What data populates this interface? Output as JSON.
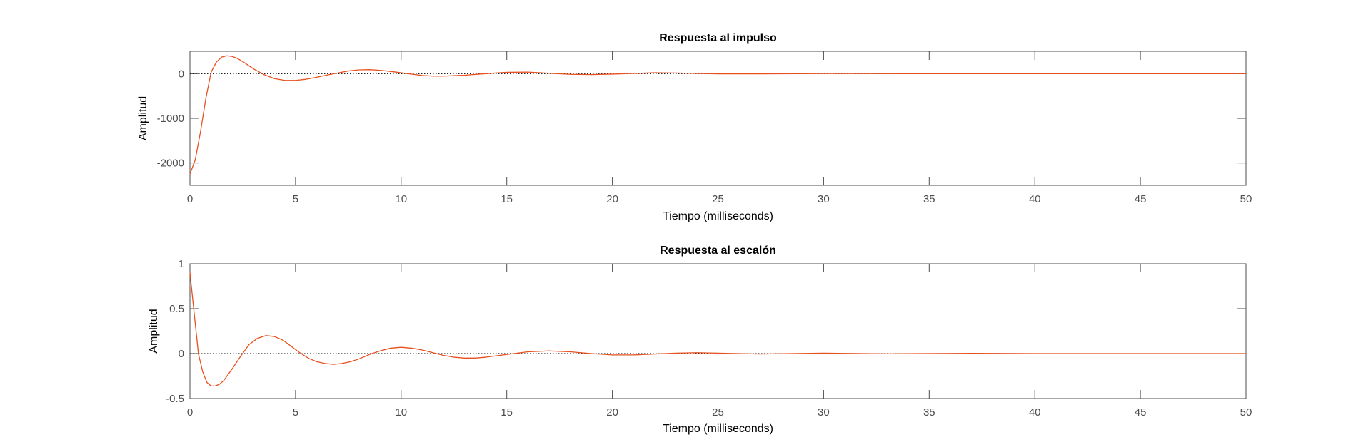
{
  "colors": {
    "series": "#e8501f",
    "axes": "#4d4d4d",
    "reference_line": "#000000"
  },
  "chart_data": [
    {
      "type": "line",
      "title": "Respuesta al impulso",
      "xlabel": "Tiempo (milliseconds)",
      "ylabel": "Amplitud",
      "xlim": [
        0,
        50
      ],
      "ylim": [
        -2500,
        500
      ],
      "xticks": [
        0,
        5,
        10,
        15,
        20,
        25,
        30,
        35,
        40,
        45,
        50
      ],
      "yticks": [
        -2000,
        -1000,
        0
      ],
      "xtick_labels": [
        "0",
        "5",
        "10",
        "15",
        "20",
        "25",
        "30",
        "35",
        "40",
        "45",
        "50"
      ],
      "ytick_labels": [
        "-2000",
        "-1000",
        "0"
      ],
      "grid": false,
      "reference_line_y": 0,
      "series": [
        {
          "color": "#e8501f",
          "x": [
            0,
            0.25,
            0.5,
            0.75,
            1,
            1.25,
            1.5,
            1.75,
            2,
            2.25,
            2.5,
            2.75,
            3,
            3.5,
            4,
            4.5,
            5,
            5.5,
            6,
            6.5,
            7,
            7.5,
            8,
            8.5,
            9,
            9.5,
            10,
            10.5,
            11,
            11.5,
            12,
            13,
            14,
            15,
            16,
            17,
            18,
            19,
            20,
            21,
            22,
            23,
            24,
            25,
            27,
            30,
            35,
            40,
            45,
            50
          ],
          "y": [
            -2250,
            -1930,
            -1300,
            -560,
            30,
            260,
            370,
            400,
            385,
            340,
            270,
            190,
            110,
            -20,
            -110,
            -150,
            -150,
            -125,
            -80,
            -30,
            15,
            60,
            85,
            90,
            75,
            50,
            20,
            -10,
            -40,
            -55,
            -55,
            -35,
            0,
            30,
            35,
            10,
            -15,
            -20,
            -10,
            5,
            20,
            15,
            5,
            -5,
            -5,
            3,
            0,
            0,
            0,
            0
          ]
        }
      ]
    },
    {
      "type": "line",
      "title": "Respuesta al escalón",
      "xlabel": "Tiempo (milliseconds)",
      "ylabel": "Amplitud",
      "xlim": [
        0,
        50
      ],
      "ylim": [
        -0.5,
        1
      ],
      "xticks": [
        0,
        5,
        10,
        15,
        20,
        25,
        30,
        35,
        40,
        45,
        50
      ],
      "yticks": [
        -0.5,
        0,
        0.5,
        1
      ],
      "xtick_labels": [
        "0",
        "5",
        "10",
        "15",
        "20",
        "25",
        "30",
        "35",
        "40",
        "45",
        "50"
      ],
      "ytick_labels": [
        "-0.5",
        "0",
        "0.5",
        "1"
      ],
      "grid": false,
      "reference_line_y": 0,
      "series": [
        {
          "color": "#e8501f",
          "x": [
            0,
            0.2,
            0.4,
            0.6,
            0.8,
            1,
            1.2,
            1.4,
            1.6,
            2,
            2.4,
            2.8,
            3.2,
            3.6,
            4,
            4.4,
            4.8,
            5.2,
            5.6,
            6,
            6.4,
            6.8,
            7.2,
            7.6,
            8,
            8.5,
            9,
            9.5,
            10,
            10.5,
            11,
            11.5,
            12,
            12.5,
            13,
            13.5,
            14,
            15,
            16,
            17,
            18,
            19,
            20,
            21,
            22,
            23,
            24,
            25,
            27,
            30,
            33,
            37,
            40,
            45,
            50
          ],
          "y": [
            0.9,
            0.45,
            0.0,
            -0.2,
            -0.32,
            -0.36,
            -0.36,
            -0.34,
            -0.3,
            -0.17,
            -0.03,
            0.1,
            0.17,
            0.2,
            0.19,
            0.15,
            0.08,
            0.01,
            -0.05,
            -0.09,
            -0.11,
            -0.12,
            -0.11,
            -0.09,
            -0.06,
            -0.01,
            0.03,
            0.06,
            0.07,
            0.06,
            0.04,
            0.01,
            -0.02,
            -0.04,
            -0.05,
            -0.05,
            -0.04,
            -0.01,
            0.02,
            0.03,
            0.02,
            0.0,
            -0.015,
            -0.015,
            -0.005,
            0.005,
            0.01,
            0.005,
            -0.005,
            0.005,
            -0.003,
            0.003,
            0.0,
            0.0,
            0.0
          ]
        }
      ]
    }
  ]
}
